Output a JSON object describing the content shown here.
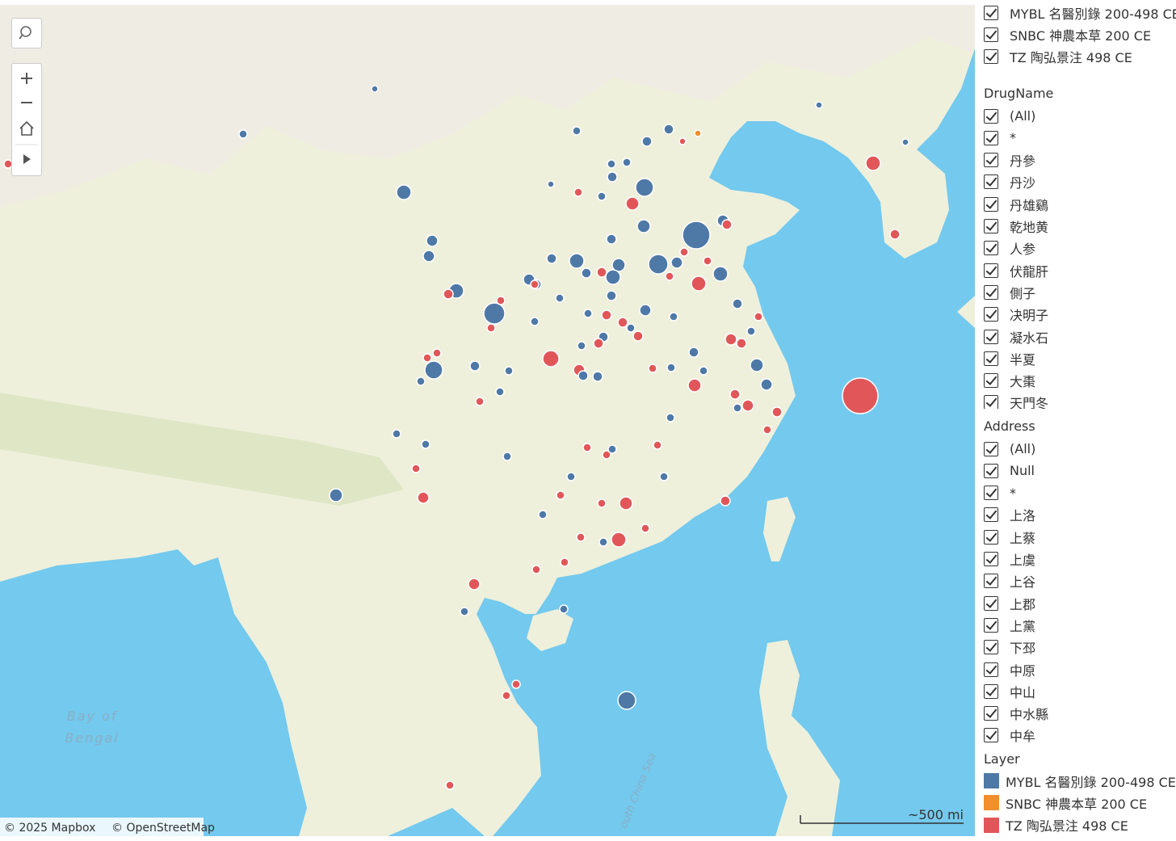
{
  "layer_filter": {
    "items": [
      "MYBL 名醫別錄 200-498 CE",
      "SNBC 神農本草 200 CE",
      "TZ 陶弘景注 498 CE"
    ]
  },
  "drug_name": {
    "title": "DrugName",
    "items": [
      "(All)",
      "*",
      "丹參",
      "丹沙",
      "丹雄鷄",
      "乾地黄",
      "人参",
      "伏龍肝",
      "側子",
      "决明子",
      "凝水石",
      "半夏",
      "大棗",
      "天門冬"
    ]
  },
  "address": {
    "title": "Address",
    "items": [
      "(All)",
      "Null",
      "*",
      "上洛",
      "上蔡",
      "上虞",
      "上谷",
      "上郡",
      "上黨",
      "下邳",
      "中原",
      "中山",
      "中水縣",
      "中牟"
    ]
  },
  "legend": {
    "title": "Layer",
    "items": [
      {
        "label": "MYBL 名醫別錄 200-498 CE",
        "color": "#4e79a7"
      },
      {
        "label": "SNBC 神農本草 200 CE",
        "color": "#f28e2b"
      },
      {
        "label": "TZ 陶弘景注 498 CE",
        "color": "#e15759"
      }
    ]
  },
  "map": {
    "labels": [
      "Bay of",
      "Bengal",
      "outh China Sea"
    ],
    "attribution": [
      "© 2025 Mapbox",
      "© OpenStreetMap"
    ],
    "scale": "~500 mi"
  }
}
